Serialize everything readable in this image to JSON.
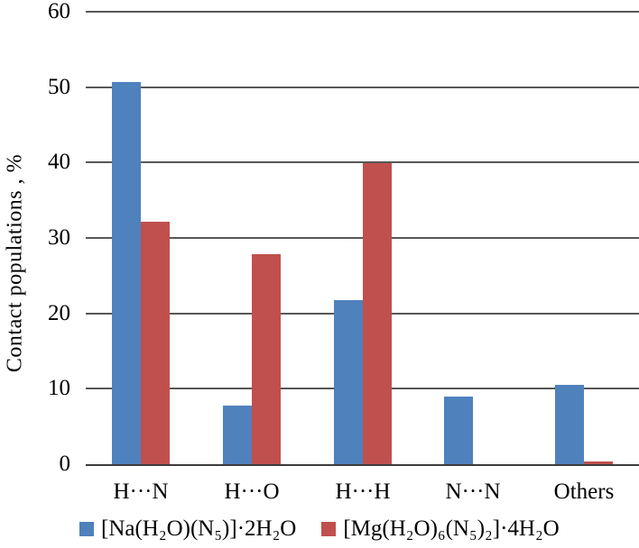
{
  "figure": {
    "background": "#ffffff",
    "gridline_color": "#575757",
    "axis_line_color": "#3c3c3c",
    "text_color": "#000000"
  },
  "chart_data": {
    "type": "bar",
    "title": "",
    "xlabel": "",
    "ylabel": "Contact populations , %",
    "categories": [
      "H···N",
      "H···O",
      "H···H",
      "N···N",
      "Others"
    ],
    "series": [
      {
        "name": "[Na(H₂O)(N₅)]·2H₂O",
        "color": "#4f81bd",
        "values": [
          50.7,
          7.8,
          21.8,
          9.0,
          10.5
        ]
      },
      {
        "name": "[Mg(H₂O)₆(N₅)₂]·4H₂O",
        "color": "#c0504d",
        "values": [
          32.1,
          27.9,
          39.9,
          0,
          0.4
        ]
      }
    ],
    "ylim": [
      0,
      60
    ],
    "yticks": [
      0,
      10,
      20,
      30,
      40,
      50,
      60
    ],
    "grid": "horizontal",
    "legend_position": "bottom"
  }
}
